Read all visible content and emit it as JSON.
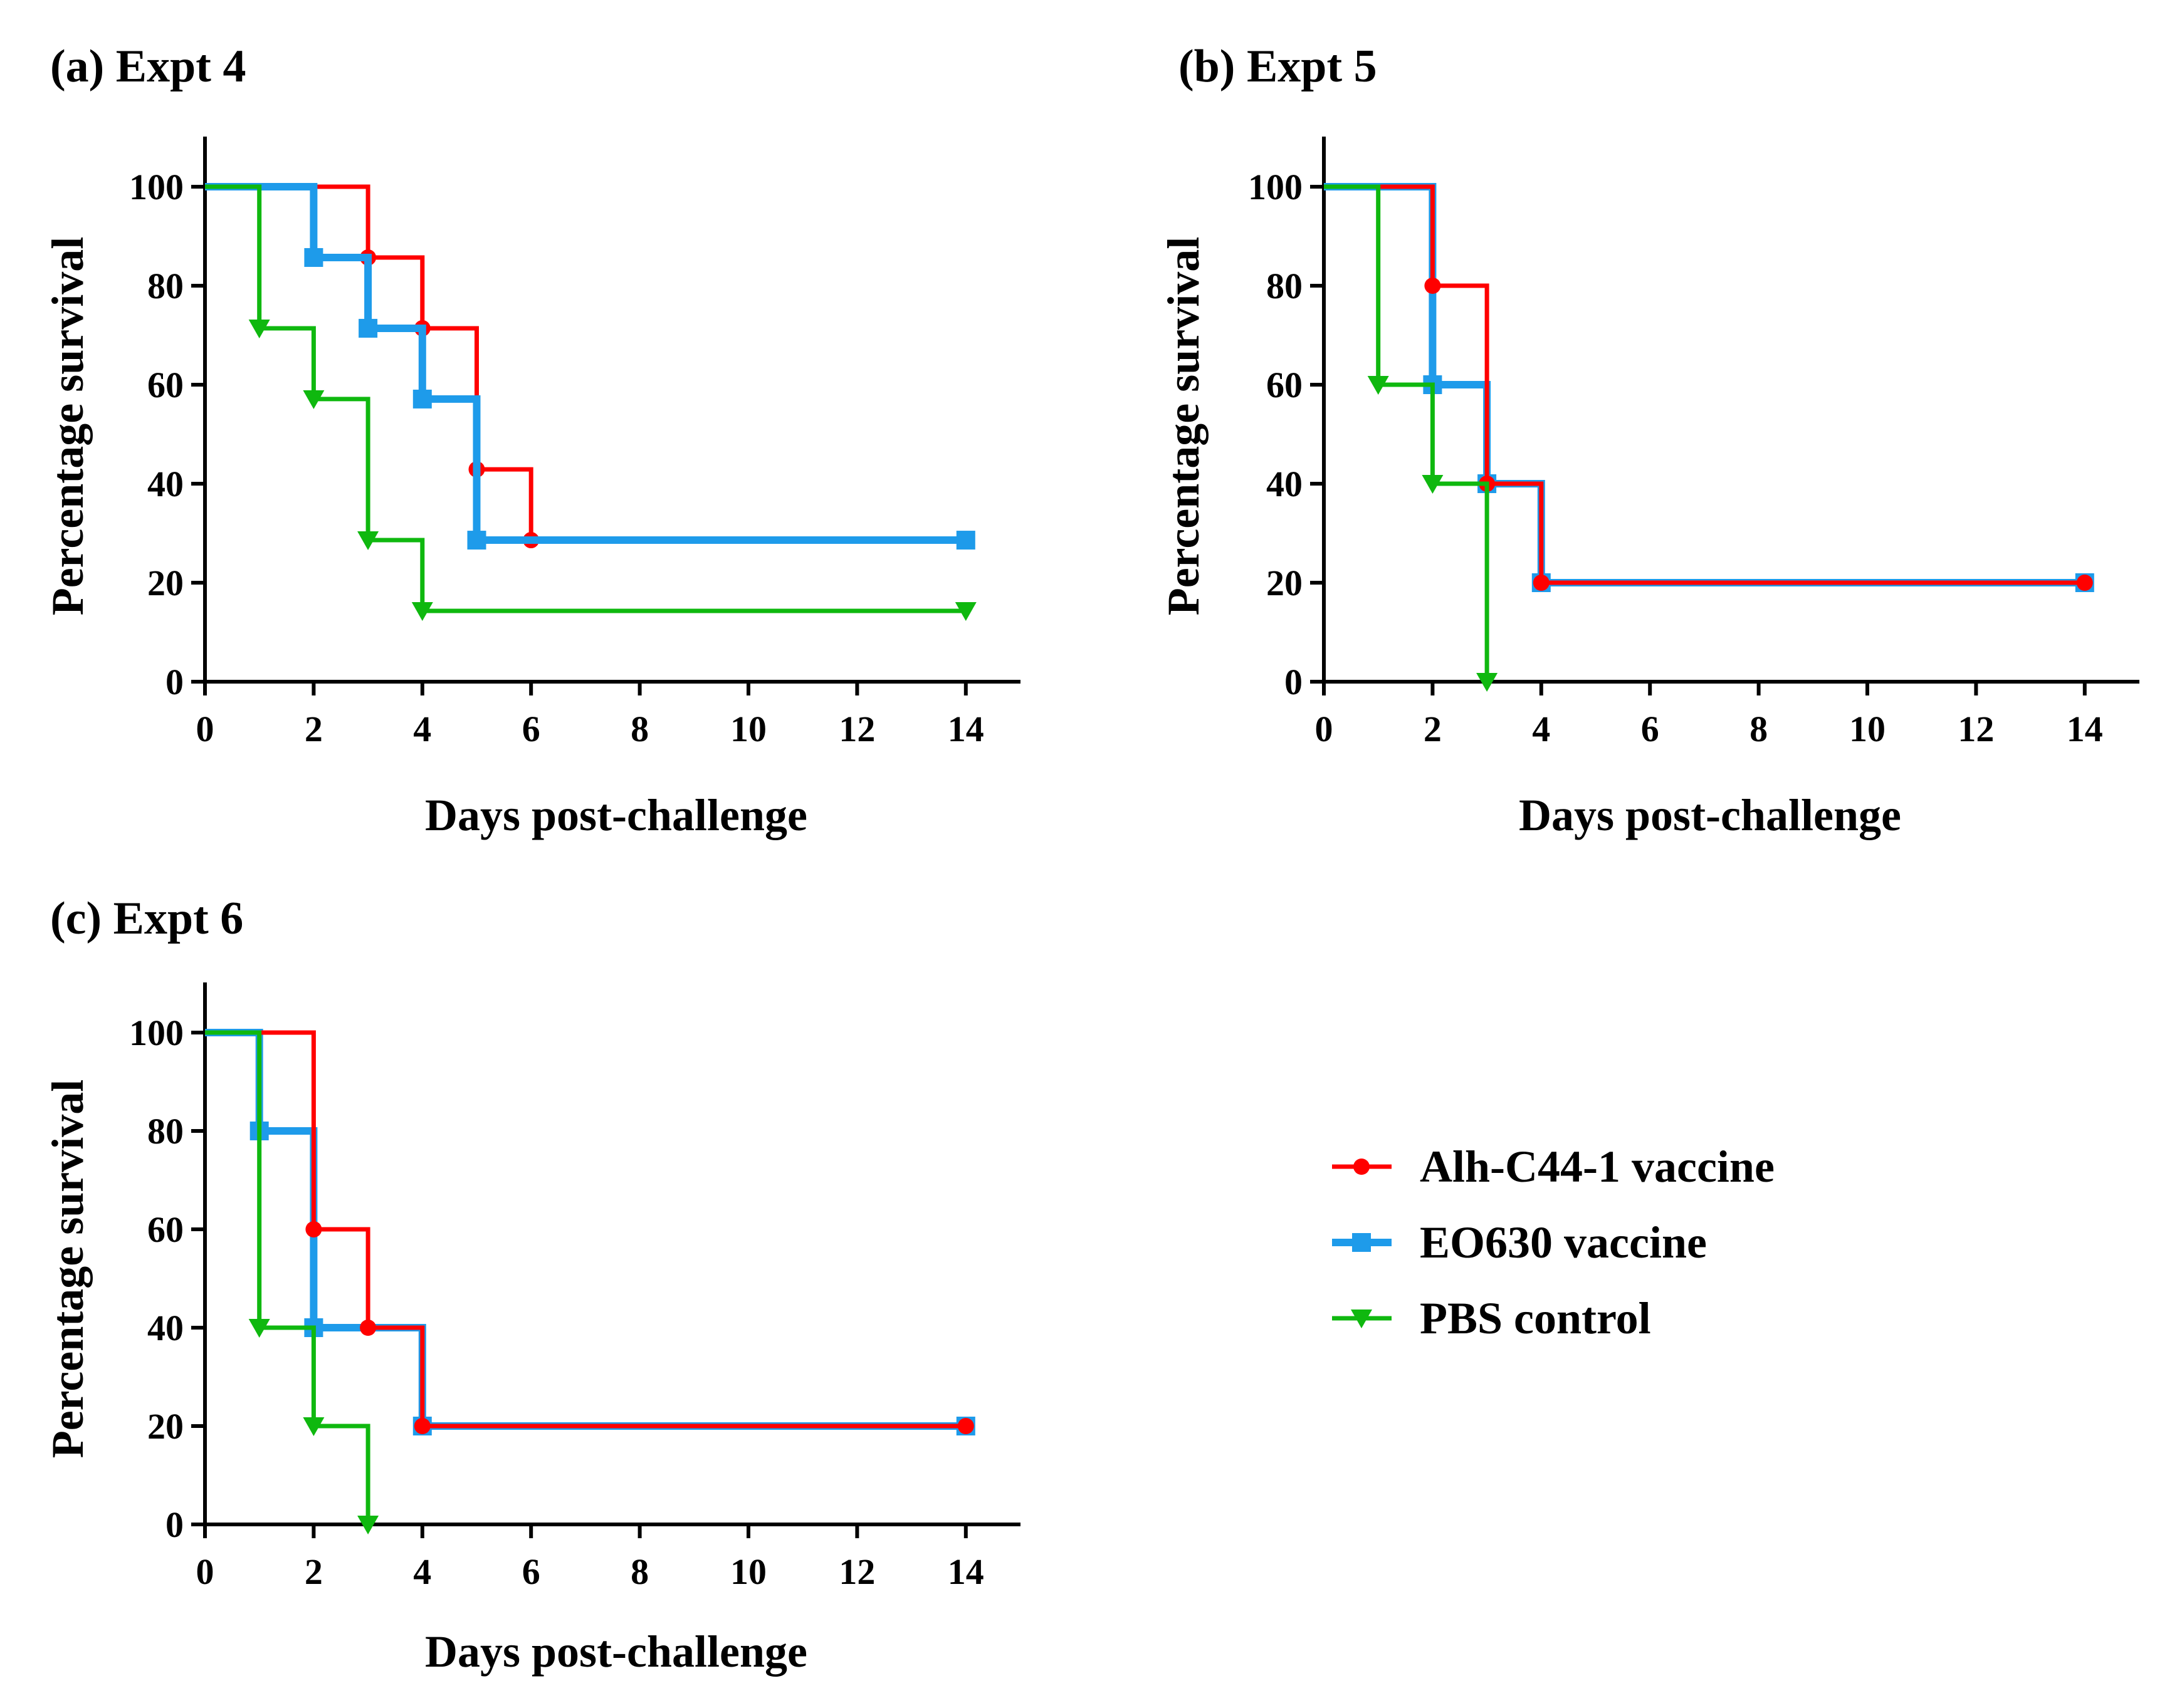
{
  "colors": {
    "alh": "#ff0000",
    "eo": "#1e9bea",
    "pbs": "#0fb80f",
    "axis": "#000000"
  },
  "legend": {
    "items": [
      {
        "key": "alh",
        "label": "Alh-C44-1 vaccine",
        "marker": "circle"
      },
      {
        "key": "eo",
        "label": "EO630 vaccine",
        "marker": "square"
      },
      {
        "key": "pbs",
        "label": "PBS control",
        "marker": "triangle-down"
      }
    ]
  },
  "chart_data": [
    {
      "type": "line",
      "subtype": "kaplan-meier-step",
      "title": "(a) Expt 4",
      "xlabel": "Days post-challenge",
      "ylabel": "Percentage survival",
      "xlim": [
        0,
        15
      ],
      "ylim": [
        0,
        110
      ],
      "xticks": [
        0,
        2,
        4,
        6,
        8,
        10,
        12,
        14
      ],
      "yticks": [
        0,
        20,
        40,
        60,
        80,
        100
      ],
      "series": [
        {
          "name": "Alh-C44-1 vaccine",
          "key": "alh",
          "steps": [
            [
              0,
              100
            ],
            [
              3,
              85.7
            ],
            [
              4,
              71.4
            ],
            [
              5,
              42.9
            ],
            [
              6,
              28.6
            ]
          ],
          "end": 14,
          "markers": [
            [
              3,
              85.7
            ],
            [
              4,
              71.4
            ],
            [
              5,
              42.9
            ],
            [
              6,
              28.6
            ],
            [
              14,
              28.6
            ]
          ]
        },
        {
          "name": "EO630 vaccine",
          "key": "eo",
          "steps": [
            [
              0,
              100
            ],
            [
              2,
              85.7
            ],
            [
              3,
              71.4
            ],
            [
              4,
              57.1
            ],
            [
              5,
              28.6
            ]
          ],
          "end": 14,
          "markers": [
            [
              2,
              85.7
            ],
            [
              3,
              71.4
            ],
            [
              4,
              57.1
            ],
            [
              5,
              28.6
            ],
            [
              14,
              28.6
            ]
          ]
        },
        {
          "name": "PBS control",
          "key": "pbs",
          "steps": [
            [
              0,
              100
            ],
            [
              1,
              71.4
            ],
            [
              2,
              57.1
            ],
            [
              3,
              28.6
            ],
            [
              4,
              14.3
            ]
          ],
          "end": 14,
          "markers": [
            [
              1,
              71.4
            ],
            [
              2,
              57.1
            ],
            [
              3,
              28.6
            ],
            [
              4,
              14.3
            ],
            [
              14,
              14.3
            ]
          ]
        }
      ]
    },
    {
      "type": "line",
      "subtype": "kaplan-meier-step",
      "title": "(b) Expt 5",
      "xlabel": "Days post-challenge",
      "ylabel": "Percentage survival",
      "xlim": [
        0,
        15
      ],
      "ylim": [
        0,
        110
      ],
      "xticks": [
        0,
        2,
        4,
        6,
        8,
        10,
        12,
        14
      ],
      "yticks": [
        0,
        20,
        40,
        60,
        80,
        100
      ],
      "series": [
        {
          "name": "EO630 vaccine",
          "key": "eo",
          "steps": [
            [
              0,
              100
            ],
            [
              2,
              60
            ],
            [
              3,
              40
            ],
            [
              4,
              20
            ]
          ],
          "end": 14,
          "markers": [
            [
              2,
              60
            ],
            [
              3,
              40
            ],
            [
              4,
              20
            ],
            [
              14,
              20
            ]
          ]
        },
        {
          "name": "Alh-C44-1 vaccine",
          "key": "alh",
          "steps": [
            [
              0,
              100
            ],
            [
              2,
              80
            ],
            [
              3,
              40
            ],
            [
              4,
              20
            ]
          ],
          "end": 14,
          "markers": [
            [
              2,
              80
            ],
            [
              3,
              40
            ],
            [
              4,
              20
            ],
            [
              14,
              20
            ]
          ]
        },
        {
          "name": "PBS control",
          "key": "pbs",
          "steps": [
            [
              0,
              100
            ],
            [
              1,
              60
            ],
            [
              2,
              40
            ],
            [
              3,
              0
            ]
          ],
          "end": 3,
          "markers": [
            [
              1,
              60
            ],
            [
              2,
              40
            ],
            [
              3,
              0
            ]
          ]
        }
      ]
    },
    {
      "type": "line",
      "subtype": "kaplan-meier-step",
      "title": "(c) Expt 6",
      "xlabel": "Days post-challenge",
      "ylabel": "Percentage survival",
      "xlim": [
        0,
        15
      ],
      "ylim": [
        0,
        110
      ],
      "xticks": [
        0,
        2,
        4,
        6,
        8,
        10,
        12,
        14
      ],
      "yticks": [
        0,
        20,
        40,
        60,
        80,
        100
      ],
      "series": [
        {
          "name": "EO630 vaccine",
          "key": "eo",
          "steps": [
            [
              0,
              100
            ],
            [
              1,
              80
            ],
            [
              2,
              40
            ],
            [
              4,
              20
            ]
          ],
          "end": 14,
          "markers": [
            [
              1,
              80
            ],
            [
              2,
              40
            ],
            [
              4,
              20
            ],
            [
              14,
              20
            ]
          ]
        },
        {
          "name": "Alh-C44-1 vaccine",
          "key": "alh",
          "steps": [
            [
              0,
              100
            ],
            [
              2,
              60
            ],
            [
              3,
              40
            ],
            [
              4,
              20
            ]
          ],
          "end": 14,
          "markers": [
            [
              2,
              60
            ],
            [
              3,
              40
            ],
            [
              4,
              20
            ],
            [
              14,
              20
            ]
          ]
        },
        {
          "name": "PBS control",
          "key": "pbs",
          "steps": [
            [
              0,
              100
            ],
            [
              1,
              40
            ],
            [
              2,
              20
            ],
            [
              3,
              0
            ]
          ],
          "end": 3,
          "markers": [
            [
              1,
              40
            ],
            [
              2,
              20
            ],
            [
              3,
              0
            ]
          ]
        }
      ]
    }
  ]
}
